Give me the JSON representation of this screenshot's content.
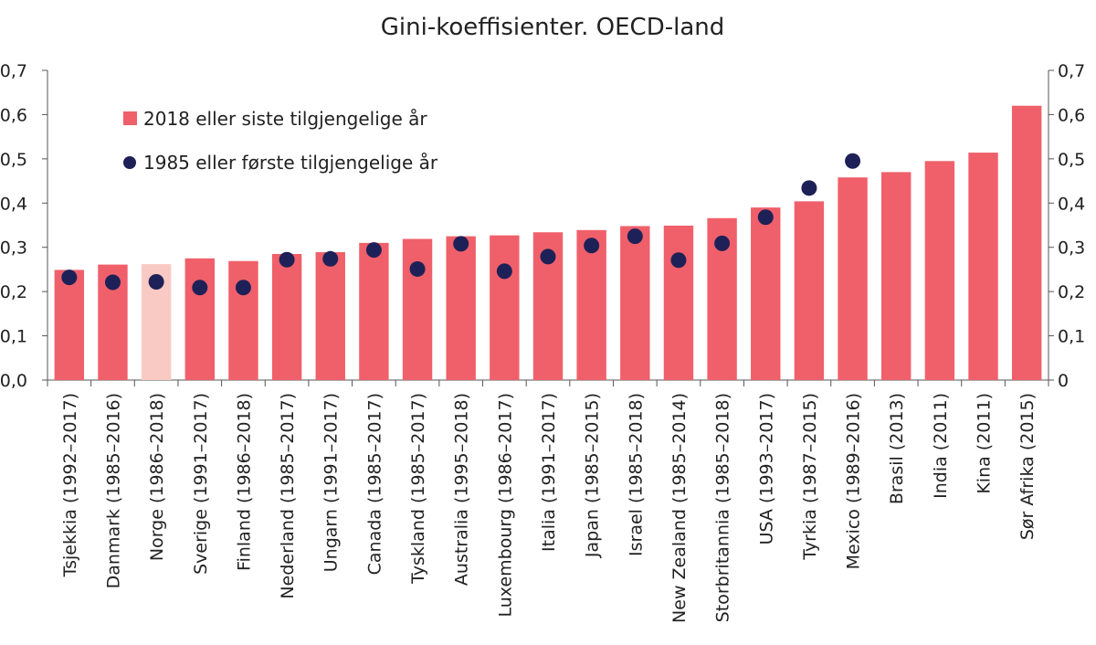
{
  "chart_data": {
    "type": "bar",
    "title": "Gini-koeffisienter. OECD-land",
    "xlabel": "",
    "ylabel": "",
    "ylim": [
      0,
      0.7
    ],
    "yticks": [
      "0,0",
      "0,1",
      "0,2",
      "0,3",
      "0,4",
      "0,5",
      "0,6",
      "0,7"
    ],
    "yticks_right": [
      "0",
      "0,1",
      "0,2",
      "0,3",
      "0,4",
      "0,5",
      "0,6",
      "0,7"
    ],
    "categories": [
      "Tsjekkia (1992–2017)",
      "Danmark (1985–2016)",
      "Norge (1986–2018)",
      "Sverige (1991–2017)",
      "Finland (1986–2018)",
      "Nederland (1985–2017)",
      "Ungarn (1991–2017)",
      "Canada (1985–2017)",
      "Tyskland (1985–2017)",
      "Australia (1995–2018)",
      "Luxembourg (1986–2017)",
      "Italia (1991–2017)",
      "Japan (1985–2015)",
      "Israel (1985–2018)",
      "New Zealand (1985–2014)",
      "Storbritannia (1985–2018)",
      "USA (1993–2017)",
      "Tyrkia (1987–2015)",
      "Mexico (1989–2016)",
      "Brasil (2013)",
      "India (2011)",
      "Kina (2011)",
      "Sør Afrika (2015)"
    ],
    "highlight_index": 2,
    "series": [
      {
        "name": "2018 eller siste tilgjengelige år",
        "kind": "bar",
        "values": [
          0.249,
          0.261,
          0.262,
          0.275,
          0.269,
          0.285,
          0.289,
          0.31,
          0.319,
          0.325,
          0.327,
          0.334,
          0.339,
          0.348,
          0.349,
          0.366,
          0.39,
          0.404,
          0.458,
          0.47,
          0.495,
          0.514,
          0.62
        ]
      },
      {
        "name": "1985 eller første tilgjengelige år",
        "kind": "dot",
        "values": [
          0.232,
          0.221,
          0.222,
          0.209,
          0.209,
          0.272,
          0.274,
          0.294,
          0.251,
          0.308,
          0.246,
          0.279,
          0.304,
          0.325,
          0.271,
          0.309,
          0.368,
          0.434,
          0.495,
          null,
          null,
          null,
          null
        ]
      }
    ],
    "colors": {
      "bar": "#f0606a",
      "bar_highlight": "#f9c9c4",
      "dot": "#1e2157"
    },
    "legend_position": "top-left",
    "grid": false
  }
}
